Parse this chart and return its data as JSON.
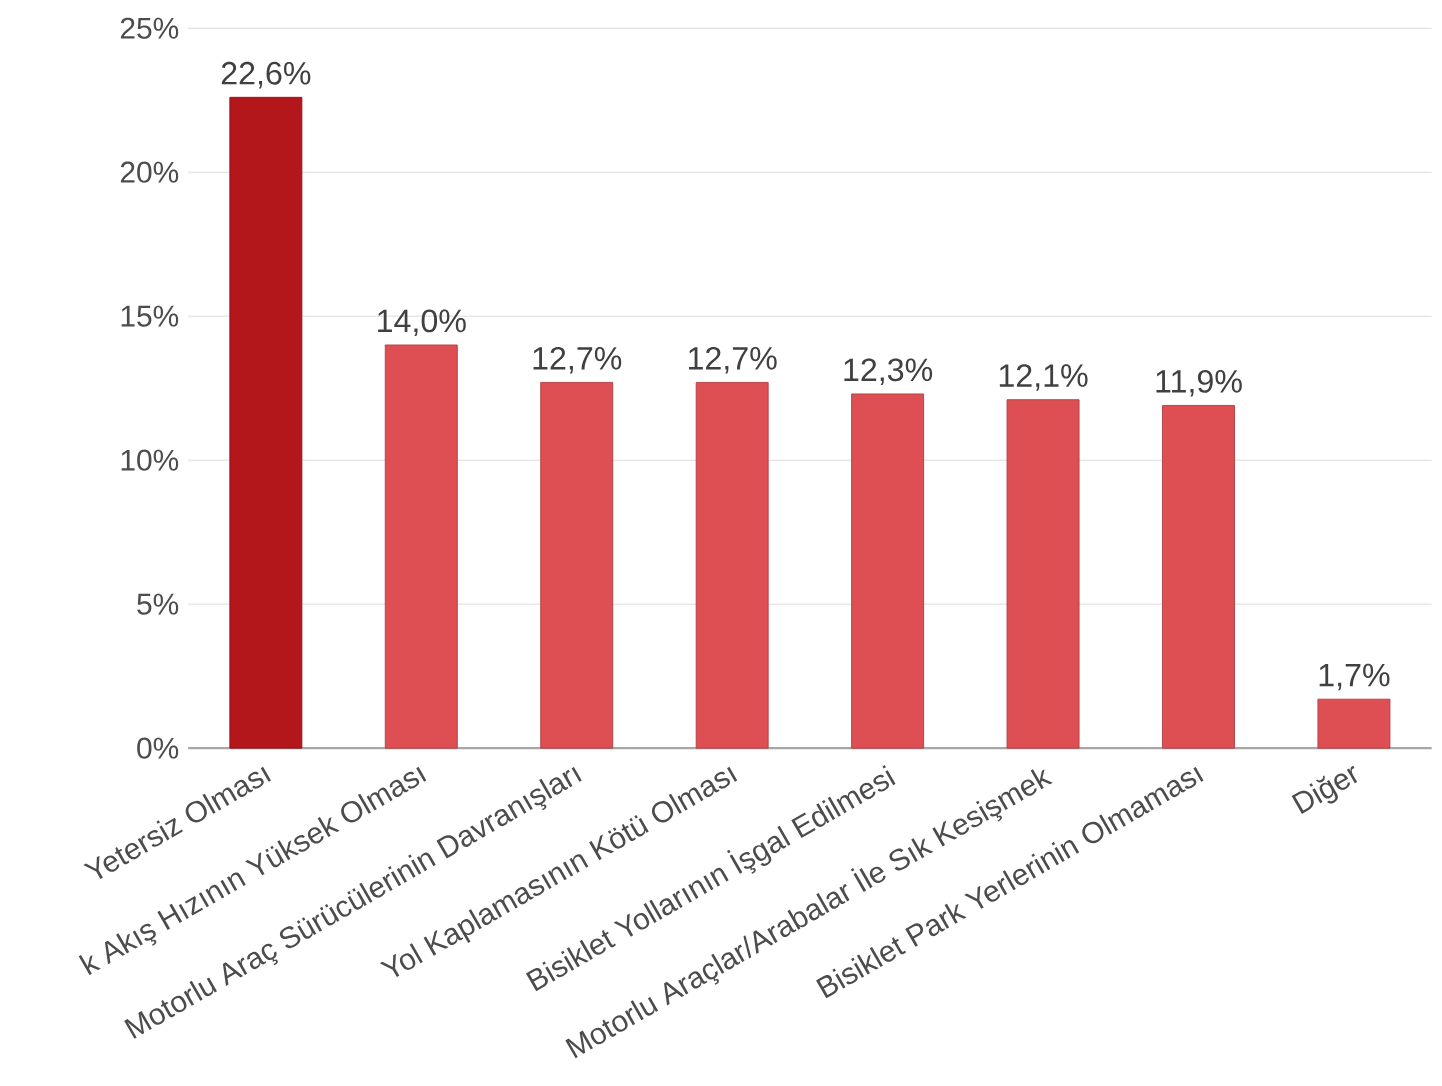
{
  "chart_data": {
    "type": "bar",
    "categories": [
      "Yetersiz Olması",
      "k Akış Hızının Yüksek Olması",
      "Motorlu Araç Sürücülerinin Davranışları",
      "Yol Kaplamasının Kötü Olması",
      "Bisiklet Yollarının İşgal Edilmesi",
      "Motorlu Araçlar/Arabalar İle Sık Kesişmek",
      "Bisiklet Park Yerlerinin Olmaması",
      "Diğer"
    ],
    "values": [
      22.6,
      14.0,
      12.7,
      12.7,
      12.3,
      12.1,
      11.9,
      1.7
    ],
    "value_labels": [
      "22,6%",
      "14,0%",
      "12,7%",
      "12,7%",
      "12,3%",
      "12,1%",
      "11,9%",
      "1,7%"
    ],
    "colors": [
      "#b3161b",
      "#de4f53",
      "#de4f53",
      "#de4f53",
      "#de4f53",
      "#de4f53",
      "#de4f53",
      "#de4f53"
    ],
    "ylim": [
      0,
      25
    ],
    "yticks": [
      {
        "value": 0,
        "label": "0%"
      },
      {
        "value": 5,
        "label": "5%"
      },
      {
        "value": 10,
        "label": "10%"
      },
      {
        "value": 15,
        "label": "15%"
      },
      {
        "value": 20,
        "label": "20%"
      },
      {
        "value": 25,
        "label": "25%"
      }
    ],
    "grid": "y"
  }
}
